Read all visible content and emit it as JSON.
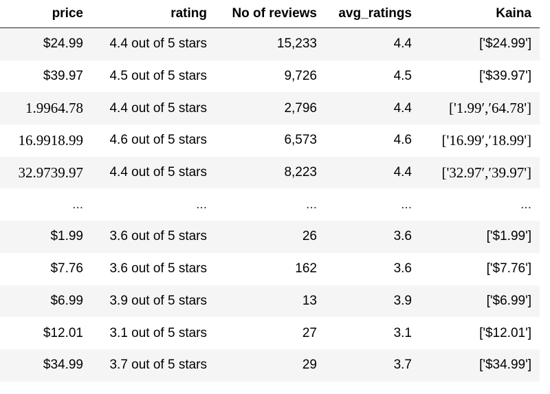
{
  "table": {
    "columns": [
      "price",
      "rating",
      "No of reviews",
      "avg_ratings",
      "Kaina"
    ],
    "rows": [
      [
        "$24.99",
        "4.4 out of 5 stars",
        "15,233",
        "4.4",
        "['$24.99']"
      ],
      [
        "$39.97",
        "4.5 out of 5 stars",
        "9,726",
        "4.5",
        "['$39.97']"
      ],
      [
        "1.9964.78",
        "4.4 out of 5 stars",
        "2,796",
        "4.4",
        "['1.99′,′64.78']"
      ],
      [
        "16.9918.99",
        "4.6 out of 5 stars",
        "6,573",
        "4.6",
        "['16.99′,′18.99']"
      ],
      [
        "32.9739.97",
        "4.4 out of 5 stars",
        "8,223",
        "4.4",
        "['32.97′,′39.97']"
      ],
      [
        "...",
        "...",
        "...",
        "...",
        "..."
      ],
      [
        "$1.99",
        "3.6 out of 5 stars",
        "26",
        "3.6",
        "['$1.99']"
      ],
      [
        "$7.76",
        "3.6 out of 5 stars",
        "162",
        "3.6",
        "['$7.76']"
      ],
      [
        "$6.99",
        "3.9 out of 5 stars",
        "13",
        "3.9",
        "['$6.99']"
      ],
      [
        "$12.01",
        "3.1 out of 5 stars",
        "27",
        "3.1",
        "['$12.01']"
      ],
      [
        "$34.99",
        "3.7 out of 5 stars",
        "29",
        "3.7",
        "['$34.99']"
      ]
    ]
  }
}
